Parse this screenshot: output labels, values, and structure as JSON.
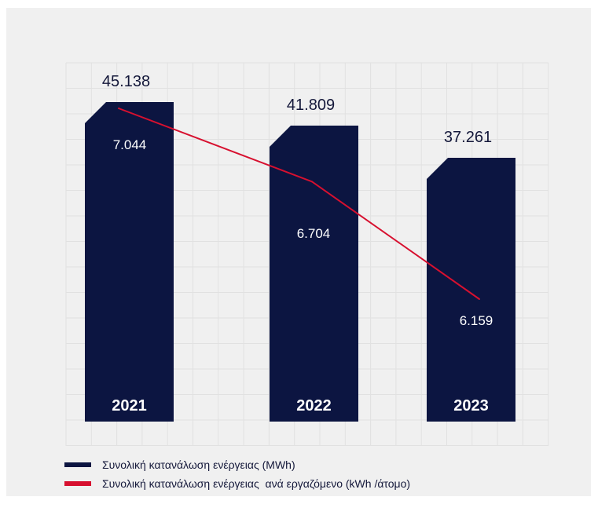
{
  "colors": {
    "background": "#ffffff",
    "panel": "#f0f0f0",
    "grid": "#e1e1e1",
    "bar": "#0c1541",
    "line": "#d7102f",
    "bar_label_text": "#ffffff",
    "value_text": "#14183a"
  },
  "chart_data": {
    "type": "bar",
    "categories": [
      "2021",
      "2022",
      "2023"
    ],
    "series": [
      {
        "name": "Συνολική κατανάλωση ενέργειας (MWh)",
        "kind": "bar",
        "values": [
          45138,
          41809,
          37261
        ],
        "labels": [
          "45.138",
          "41.809",
          "37.261"
        ]
      },
      {
        "name": "Συνολική κατανάλωση ενέργειας  ανά εργαζόμενο (kWh /άτομο)",
        "kind": "line",
        "values": [
          7044,
          6704,
          6159
        ],
        "labels": [
          "7.044",
          "6.704",
          "6.159"
        ]
      }
    ],
    "grid": true,
    "legend_position": "bottom-left"
  },
  "legend": {
    "bar_label": "Συνολική κατανάλωση ενέργειας (MWh)",
    "line_label": "Συνολική κατανάλωση ενέργειας  ανά εργαζόμενο (kWh /άτομο)"
  }
}
